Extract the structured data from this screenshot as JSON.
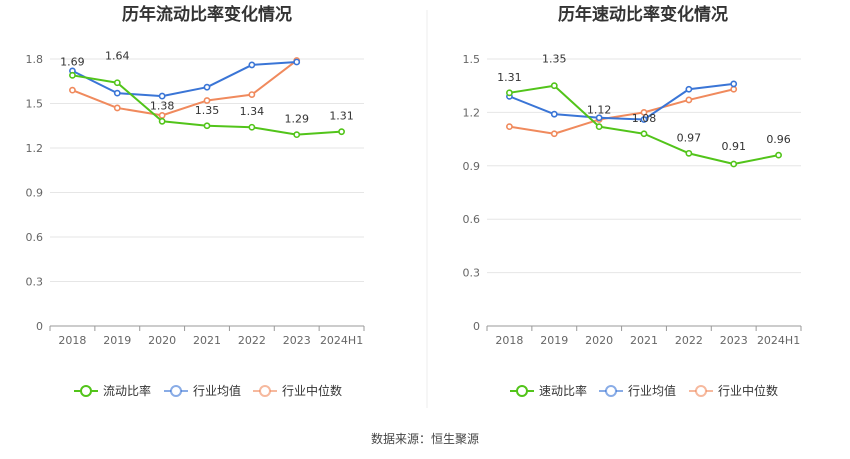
{
  "source": "数据来源：恒生聚源",
  "chart_data": [
    {
      "type": "line",
      "title": "历年流动比率变化情况",
      "categories": [
        "2018",
        "2019",
        "2020",
        "2021",
        "2022",
        "2023",
        "2024H1"
      ],
      "ylim": [
        0,
        1.8
      ],
      "yticks": [
        "0",
        "0.3",
        "0.6",
        "0.9",
        "1.2",
        "1.5",
        "1.8"
      ],
      "grid": true,
      "legend_position": "bottom",
      "series": [
        {
          "name": "流动比率",
          "color": "#52c41a",
          "values": [
            1.69,
            1.64,
            1.38,
            1.35,
            1.34,
            1.29,
            1.31
          ],
          "labels": [
            "1.69",
            "1.64",
            "1.38",
            "1.35",
            "1.34",
            "1.29",
            "1.31"
          ]
        },
        {
          "name": "行业均值",
          "color": "#3a75d6",
          "values": [
            1.72,
            1.57,
            1.55,
            1.61,
            1.76,
            1.78,
            null
          ]
        },
        {
          "name": "行业中位数",
          "color": "#f08a5d",
          "values": [
            1.59,
            1.47,
            1.42,
            1.52,
            1.56,
            1.79,
            null
          ]
        }
      ]
    },
    {
      "type": "line",
      "title": "历年速动比率变化情况",
      "categories": [
        "2018",
        "2019",
        "2020",
        "2021",
        "2022",
        "2023",
        "2024H1"
      ],
      "ylim": [
        0,
        1.5
      ],
      "yticks": [
        "0",
        "0.3",
        "0.6",
        "0.9",
        "1.2",
        "1.5"
      ],
      "grid": true,
      "legend_position": "bottom",
      "series": [
        {
          "name": "速动比率",
          "color": "#52c41a",
          "values": [
            1.31,
            1.35,
            1.12,
            1.08,
            0.97,
            0.91,
            0.96
          ],
          "labels": [
            "1.31",
            "1.35",
            "1.12",
            "1.08",
            "0.97",
            "0.91",
            "0.96"
          ]
        },
        {
          "name": "行业均值",
          "color": "#3a75d6",
          "values": [
            1.29,
            1.19,
            1.17,
            1.16,
            1.33,
            1.36,
            null
          ]
        },
        {
          "name": "行业中位数",
          "color": "#f08a5d",
          "values": [
            1.12,
            1.08,
            1.16,
            1.2,
            1.27,
            1.33,
            null
          ]
        }
      ]
    }
  ]
}
